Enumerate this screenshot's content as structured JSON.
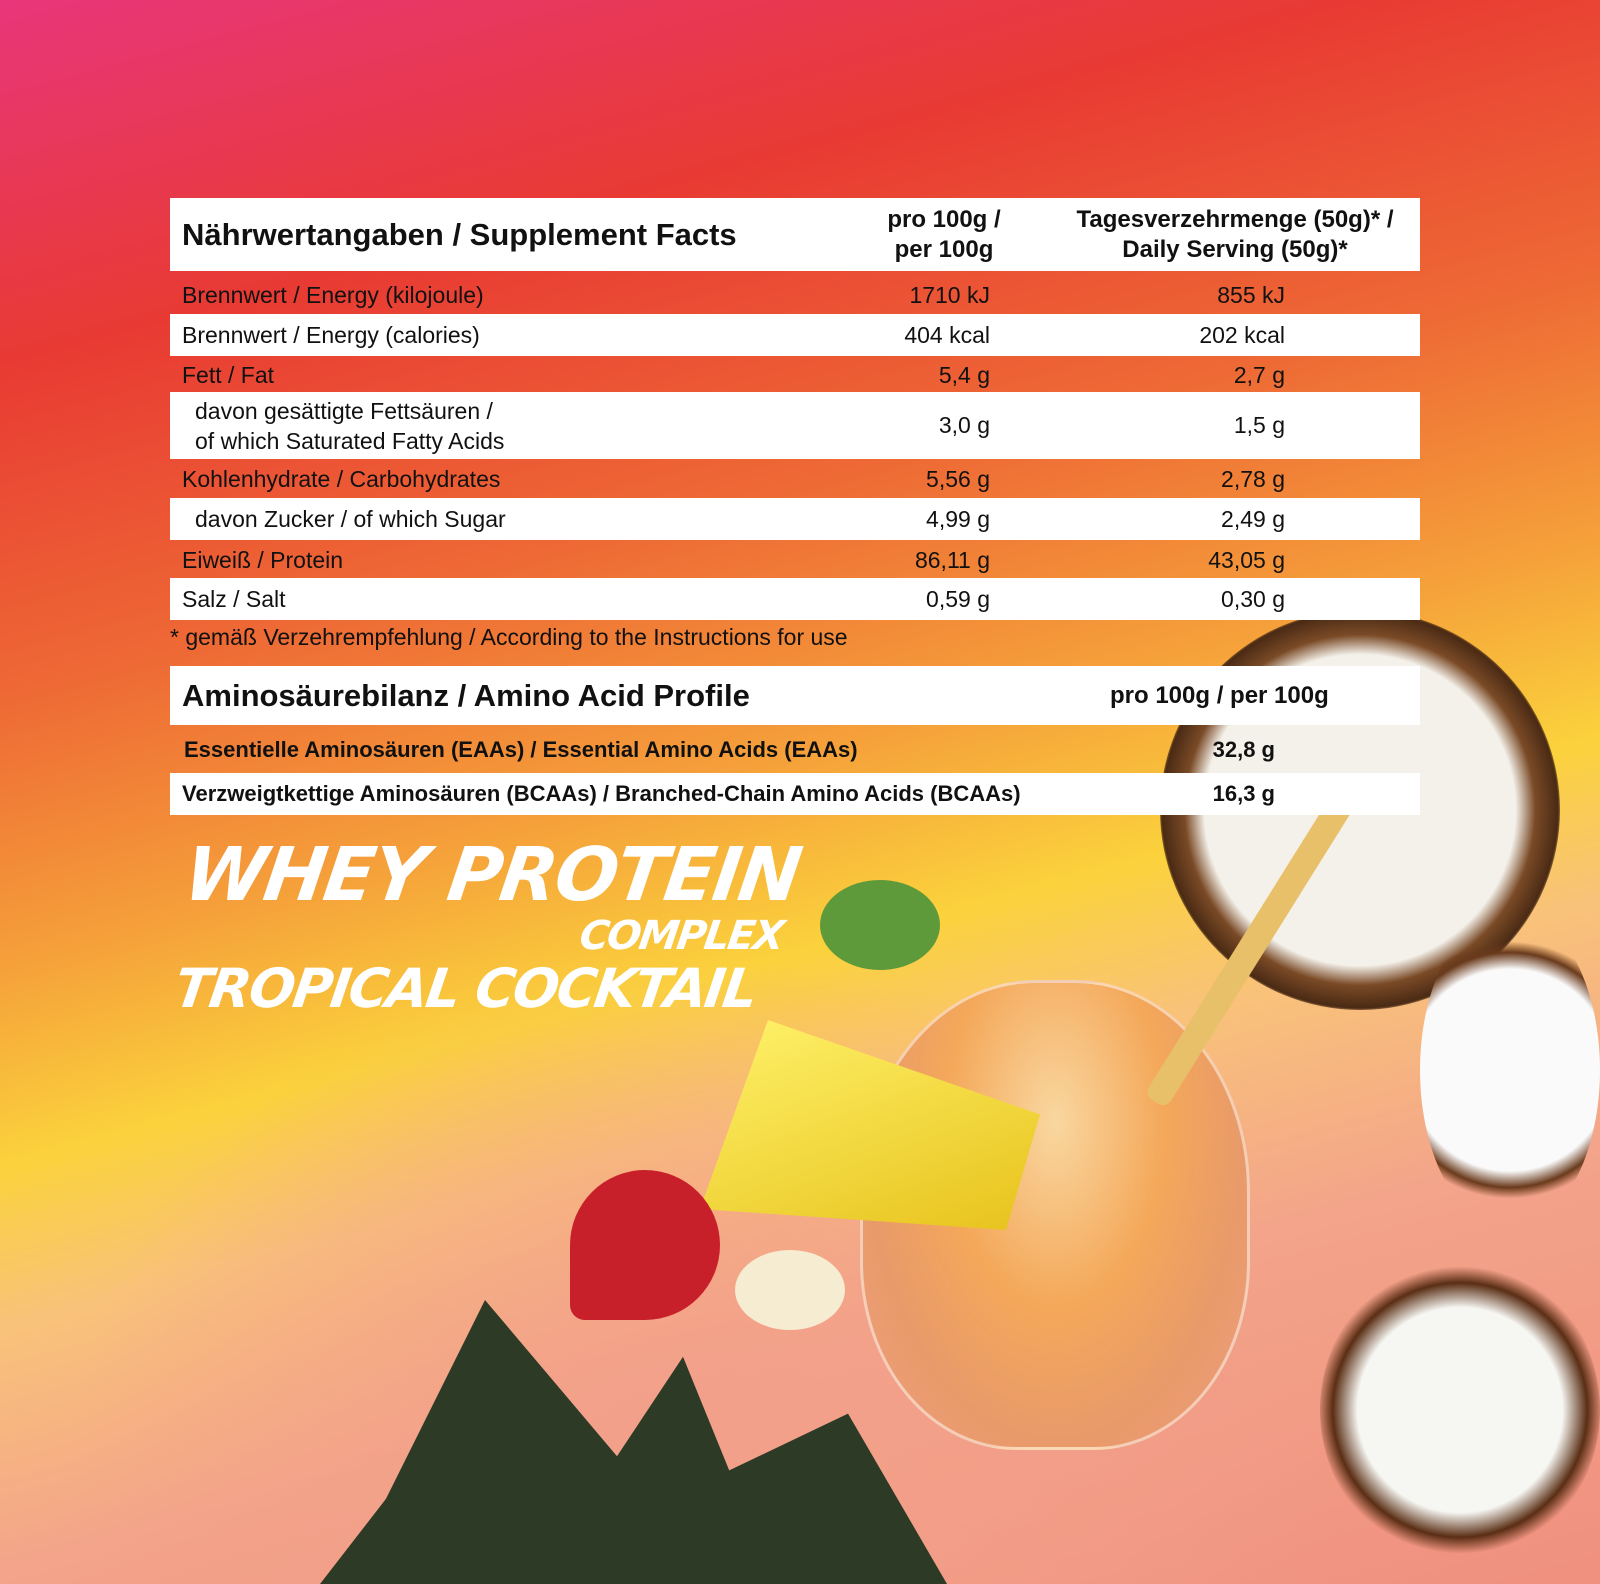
{
  "nutrition": {
    "title": "Nährwertangaben / Supplement Facts",
    "col_per100_l1": "pro 100g /",
    "col_per100_l2": "per 100g",
    "col_serving_l1": "Tagesverzehrmenge (50g)* /",
    "col_serving_l2": "Daily Serving (50g)*",
    "rows": [
      {
        "label": "Brennwert / Energy (kilojoule)",
        "per100": "1710 kJ",
        "serving": "855 kJ"
      },
      {
        "label": "Brennwert / Energy (calories)",
        "per100": "404 kcal",
        "serving": "202 kcal"
      },
      {
        "label": "Fett / Fat",
        "per100": "5,4 g",
        "serving": "2,7 g"
      },
      {
        "label_l1": "davon gesättigte Fettsäuren /",
        "label_l2": "of which Saturated Fatty Acids",
        "per100": "3,0 g",
        "serving": "1,5 g"
      },
      {
        "label": "Kohlenhydrate / Carbohydrates",
        "per100": "5,56 g",
        "serving": "2,78 g"
      },
      {
        "label": "davon Zucker / of which Sugar",
        "per100": "4,99 g",
        "serving": "2,49 g"
      },
      {
        "label": "Eiweiß / Protein",
        "per100": "86,11 g",
        "serving": "43,05 g"
      },
      {
        "label": "Salz / Salt",
        "per100": "0,59 g",
        "serving": "0,30 g"
      }
    ],
    "footnote": "* gemäß Verzehrempfehlung / According to the Instructions for use"
  },
  "amino": {
    "title": "Aminosäurebilanz  / Amino Acid Profile",
    "col": "pro 100g / per 100g",
    "rows": [
      {
        "label": "Essentielle Aminosäuren (EAAs) / Essential Amino Acids (EAAs)",
        "value": "32,8 g"
      },
      {
        "label": "Verzweigtkettige Aminosäuren (BCAAs) / Branched-Chain Amino Acids (BCAAs)",
        "value": "16,3 g"
      }
    ]
  },
  "product": {
    "line1": "WHEY PROTEIN",
    "line2": "COMPLEX",
    "line3": "TROPICAL COCKTAIL"
  }
}
